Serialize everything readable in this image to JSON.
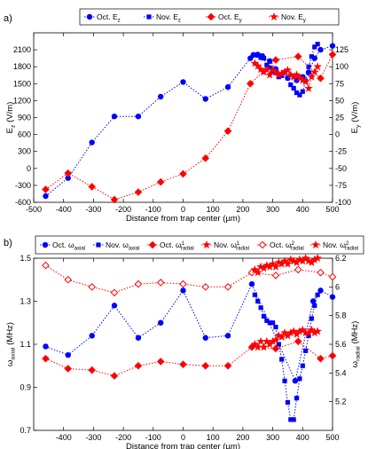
{
  "chart_data": [
    {
      "panel_label": "a)",
      "type": "line",
      "xlabel": "Distance from trap center (µm)",
      "ylabel_left_main": "E",
      "ylabel_left_sub": "z",
      "ylabel_left_unit": " (V/m)",
      "ylabel_right_main": "E",
      "ylabel_right_sub": "y",
      "ylabel_right_unit": " (V/m)",
      "xlim": [
        -500,
        500
      ],
      "ylim_left": [
        -600,
        2400
      ],
      "ylim_right": [
        -100,
        150
      ],
      "xticks": [
        -500,
        -400,
        -300,
        -200,
        -100,
        0,
        100,
        200,
        300,
        400,
        500
      ],
      "yticks_left": [
        -600,
        -300,
        0,
        300,
        600,
        900,
        1200,
        1500,
        1800,
        2100
      ],
      "yticks_right": [
        -100,
        -75,
        -50,
        -25,
        0,
        25,
        50,
        75,
        100,
        125
      ],
      "legend_position": "top",
      "series": [
        {
          "name_main": "Oct. E",
          "name_sub": "z",
          "axis": "left",
          "color": "#0000ff",
          "marker": "circle",
          "x": [
            -460,
            -385,
            -305,
            -230,
            -150,
            -75,
            0,
            75,
            150,
            225,
            235,
            250,
            265,
            290,
            310,
            330,
            350,
            380,
            400,
            420,
            440,
            460,
            500
          ],
          "y": [
            -490,
            -170,
            460,
            920,
            920,
            1270,
            1530,
            1230,
            1440,
            1950,
            2010,
            2015,
            1990,
            1900,
            1760,
            1650,
            1600,
            1560,
            1620,
            1700,
            1950,
            2100,
            2170
          ]
        },
        {
          "name_main": "Nov. E",
          "name_sub": "z",
          "axis": "left",
          "color": "#0000ff",
          "marker": "square",
          "x": [
            240,
            250,
            260,
            270,
            280,
            290,
            300,
            310,
            320,
            330,
            340,
            350,
            360,
            370,
            380,
            390,
            400,
            410,
            420,
            430,
            440,
            450
          ],
          "y": [
            2010,
            2000,
            1960,
            1950,
            1830,
            1780,
            1720,
            1690,
            1620,
            1640,
            1700,
            1600,
            1480,
            1420,
            1340,
            1300,
            1360,
            1550,
            1800,
            1980,
            2150,
            2200
          ]
        },
        {
          "name_main": "Oct. E",
          "name_sub": "y",
          "axis": "right",
          "color": "#ff0000",
          "marker": "diamond",
          "x": [
            -460,
            -385,
            -305,
            -230,
            -150,
            -75,
            0,
            75,
            150,
            225,
            310,
            385,
            460,
            500
          ],
          "y": [
            -81,
            -57,
            -77,
            -96,
            -85,
            -70,
            -58,
            -35,
            5,
            75,
            110,
            115,
            83,
            118
          ]
        },
        {
          "name_main": "Nov. E",
          "name_sub": "y",
          "axis": "right",
          "color": "#ff0000",
          "marker": "star",
          "x": [
            240,
            250,
            260,
            270,
            280,
            290,
            300,
            310,
            320,
            330,
            340,
            350,
            360,
            370,
            380,
            390,
            400,
            410,
            420,
            430,
            440,
            450
          ],
          "y": [
            105,
            101,
            96,
            92,
            96,
            88,
            95,
            92,
            88,
            90,
            92,
            95,
            88,
            85,
            88,
            84,
            80,
            78,
            68,
            85,
            92,
            100
          ]
        }
      ]
    },
    {
      "panel_label": "b)",
      "type": "line",
      "xlabel": "Distance from trap center (µm)",
      "ylabel_left_main": "ω",
      "ylabel_left_sub": "axial",
      "ylabel_left_unit": " (MHz)",
      "ylabel_right_main": "ω",
      "ylabel_right_sub": "radial",
      "ylabel_right_unit": " (MHz)",
      "xlim": [
        -500,
        500
      ],
      "ylim_left": [
        0.7,
        1.5
      ],
      "ylim_right": [
        5.0,
        6.2
      ],
      "xticks": [
        -400,
        -300,
        -200,
        -100,
        0,
        100,
        200,
        300,
        400,
        500
      ],
      "xtick_labels": [
        "-400",
        "-300",
        "-200",
        "-100",
        "0",
        "100",
        "200",
        "300",
        "400",
        "500"
      ],
      "yticks_left": [
        0.7,
        0.9,
        1.1,
        1.3,
        1.5
      ],
      "yticks_left_labels": [
        "0.7",
        "0.9",
        "1.1",
        "1.3",
        "1.5"
      ],
      "yticks_right": [
        5.2,
        5.4,
        5.6,
        5.8,
        6.0,
        6.2
      ],
      "yticks_right_labels": [
        "5.2",
        "5.4",
        "5.6",
        "5.8",
        "6",
        "6.2"
      ],
      "legend_position": "top",
      "series": [
        {
          "name_main": "Oct. ω",
          "name_sub": "axial",
          "name_sup": "",
          "axis": "left",
          "color": "#0000ff",
          "marker": "circle",
          "x": [
            -460,
            -385,
            -305,
            -230,
            -150,
            -75,
            0,
            75,
            150,
            230,
            375,
            435,
            460,
            500
          ],
          "y": [
            1.09,
            1.05,
            1.14,
            1.28,
            1.13,
            1.2,
            1.35,
            1.13,
            1.14,
            1.38,
            0.93,
            1.3,
            1.35,
            1.32
          ]
        },
        {
          "name_main": "Nov. ω",
          "name_sub": "axial",
          "name_sup": "",
          "axis": "left",
          "color": "#0000ff",
          "marker": "square",
          "x": [
            240,
            250,
            260,
            270,
            280,
            290,
            300,
            310,
            320,
            330,
            340,
            350,
            360,
            370,
            380,
            390,
            400,
            410,
            420,
            430,
            440,
            450
          ],
          "y": [
            1.33,
            1.3,
            1.27,
            1.23,
            1.21,
            1.2,
            1.2,
            1.18,
            1.1,
            1.03,
            0.93,
            0.83,
            0.75,
            0.75,
            0.85,
            0.94,
            1.0,
            1.07,
            1.14,
            1.22,
            1.28,
            1.33
          ]
        },
        {
          "name_main": "Oct. ω",
          "name_sub": "radial",
          "name_sup": "1",
          "axis": "right",
          "color": "#ff0000",
          "marker": "diamond",
          "x": [
            -460,
            -385,
            -305,
            -230,
            -150,
            -75,
            0,
            75,
            150,
            230,
            310,
            385,
            460,
            500
          ],
          "y": [
            5.5,
            5.43,
            5.42,
            5.38,
            5.45,
            5.48,
            5.46,
            5.45,
            5.45,
            5.58,
            5.57,
            5.62,
            5.5,
            5.52
          ]
        },
        {
          "name_main": "Nov. ω",
          "name_sub": "radial",
          "name_sup": "1",
          "axis": "right",
          "color": "#ff0000",
          "marker": "star",
          "x": [
            240,
            250,
            260,
            270,
            280,
            290,
            300,
            310,
            320,
            330,
            340,
            350,
            360,
            370,
            380,
            390,
            400,
            410,
            420,
            430,
            440,
            450
          ],
          "y": [
            5.6,
            5.58,
            5.62,
            5.58,
            5.62,
            5.6,
            5.62,
            5.63,
            5.66,
            5.65,
            5.68,
            5.66,
            5.68,
            5.69,
            5.67,
            5.69,
            5.7,
            5.68,
            5.68,
            5.7,
            5.68,
            5.69
          ]
        },
        {
          "name_main": "Oct. ω",
          "name_sub": "radial",
          "name_sup": "2",
          "axis": "right",
          "color": "#ff0000",
          "marker": "diamond-open",
          "x": [
            -460,
            -385,
            -305,
            -230,
            -150,
            -75,
            0,
            75,
            150,
            230,
            310,
            385,
            460,
            500
          ],
          "y": [
            6.15,
            6.05,
            6.0,
            5.96,
            6.02,
            6.03,
            6.02,
            6.0,
            6.0,
            6.1,
            6.08,
            6.12,
            6.1,
            6.07
          ]
        },
        {
          "name_main": "Nov. ω",
          "name_sub": "radial",
          "name_sup": "2",
          "axis": "right",
          "color": "#ff0000",
          "marker": "star",
          "x": [
            240,
            250,
            260,
            270,
            280,
            290,
            300,
            310,
            320,
            330,
            340,
            350,
            360,
            370,
            380,
            390,
            400,
            410,
            420,
            430,
            440,
            450
          ],
          "y": [
            6.12,
            6.1,
            6.14,
            6.13,
            6.15,
            6.14,
            6.16,
            6.14,
            6.17,
            6.16,
            6.18,
            6.16,
            6.19,
            6.18,
            6.17,
            6.19,
            6.18,
            6.2,
            6.18,
            6.17,
            6.19,
            6.2
          ]
        }
      ]
    }
  ]
}
